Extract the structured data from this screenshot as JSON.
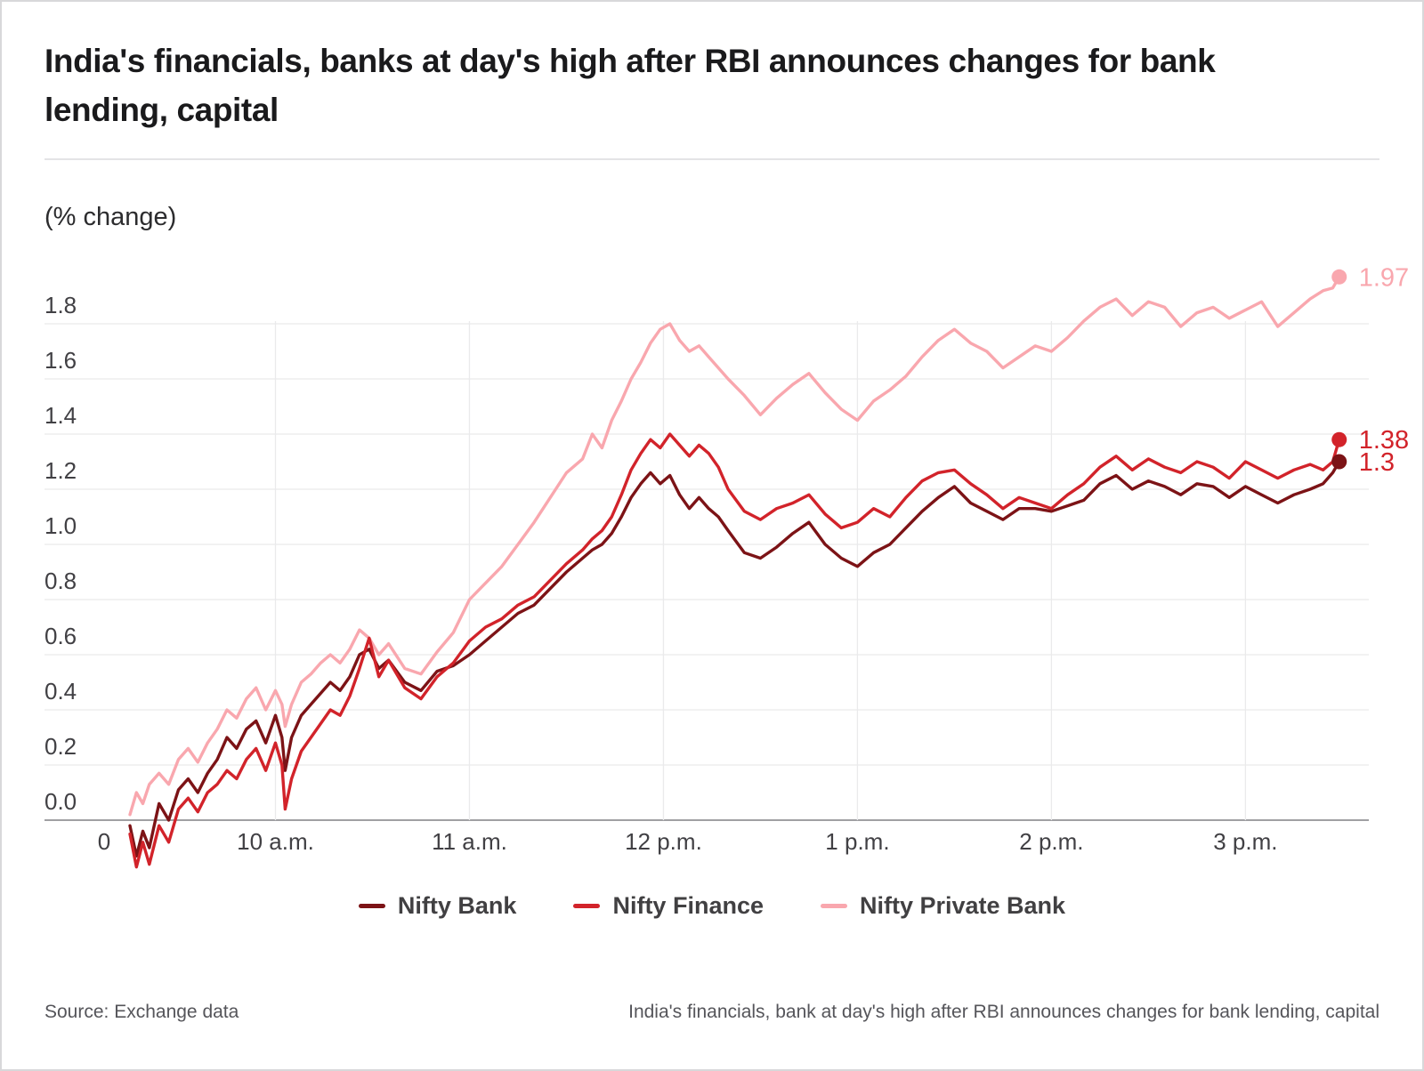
{
  "page": {
    "title": "India's financials, banks at day's high after RBI announces changes for bank lending, capital",
    "unit_label": "(% change)"
  },
  "legend": [
    {
      "label": "Nifty Bank",
      "color": "#7c1316"
    },
    {
      "label": "Nifty Finance",
      "color": "#d2232a"
    },
    {
      "label": "Nifty Private Bank",
      "color": "#f9a7ae"
    }
  ],
  "footer": {
    "source": "Source: Exchange data",
    "caption": "India's financials, bank at day's high after RBI announces changes for bank lending, capital"
  },
  "chart_data": {
    "type": "line",
    "title": "India's financials, banks at day's high after RBI announces changes for bank lending, capital",
    "ylabel": "(% change)",
    "x_unit": "minutes after 9:15 a.m. market open",
    "ylim": [
      -0.25,
      2.05
    ],
    "grid": true,
    "legend_position": "bottom",
    "x_ticks": [
      {
        "t": -8,
        "label": "0",
        "grid": false
      },
      {
        "t": 45,
        "label": "10 a.m.",
        "grid": true
      },
      {
        "t": 105,
        "label": "11 a.m.",
        "grid": true
      },
      {
        "t": 165,
        "label": "12 p.m.",
        "grid": true
      },
      {
        "t": 225,
        "label": "1 p.m.",
        "grid": true
      },
      {
        "t": 285,
        "label": "2 p.m.",
        "grid": true
      },
      {
        "t": 345,
        "label": "3 p.m.",
        "grid": true
      }
    ],
    "y_ticks": [
      0.0,
      0.2,
      0.4,
      0.6,
      0.8,
      1.0,
      1.2,
      1.4,
      1.6,
      1.8
    ],
    "x": [
      0,
      2,
      4,
      6,
      9,
      12,
      15,
      18,
      21,
      24,
      27,
      30,
      33,
      36,
      39,
      42,
      45,
      47,
      48,
      50,
      53,
      56,
      59,
      62,
      65,
      68,
      71,
      74,
      77,
      80,
      85,
      90,
      95,
      100,
      105,
      110,
      115,
      120,
      125,
      130,
      135,
      140,
      143,
      146,
      149,
      152,
      155,
      158,
      161,
      164,
      167,
      170,
      173,
      176,
      179,
      182,
      185,
      190,
      195,
      200,
      205,
      210,
      215,
      220,
      225,
      230,
      235,
      240,
      245,
      250,
      255,
      260,
      265,
      270,
      275,
      280,
      285,
      290,
      295,
      300,
      305,
      310,
      315,
      320,
      325,
      330,
      335,
      340,
      345,
      350,
      355,
      360,
      365,
      369,
      372,
      374
    ],
    "series": [
      {
        "name": "Nifty Private Bank",
        "color": "#f9a7ae",
        "label_color": "#f9a7ae",
        "end_label": "1.97",
        "values": [
          0.02,
          0.1,
          0.06,
          0.13,
          0.17,
          0.13,
          0.22,
          0.26,
          0.21,
          0.28,
          0.33,
          0.4,
          0.37,
          0.44,
          0.48,
          0.4,
          0.47,
          0.42,
          0.34,
          0.42,
          0.5,
          0.53,
          0.57,
          0.6,
          0.57,
          0.62,
          0.69,
          0.66,
          0.6,
          0.64,
          0.55,
          0.53,
          0.61,
          0.68,
          0.8,
          0.86,
          0.92,
          1.0,
          1.08,
          1.17,
          1.26,
          1.31,
          1.4,
          1.35,
          1.45,
          1.52,
          1.6,
          1.66,
          1.73,
          1.78,
          1.8,
          1.74,
          1.7,
          1.72,
          1.68,
          1.64,
          1.6,
          1.54,
          1.47,
          1.53,
          1.58,
          1.62,
          1.55,
          1.49,
          1.45,
          1.52,
          1.56,
          1.61,
          1.68,
          1.74,
          1.78,
          1.73,
          1.7,
          1.64,
          1.68,
          1.72,
          1.7,
          1.75,
          1.81,
          1.86,
          1.89,
          1.83,
          1.88,
          1.86,
          1.79,
          1.84,
          1.86,
          1.82,
          1.85,
          1.88,
          1.79,
          1.84,
          1.89,
          1.92,
          1.93,
          1.97
        ]
      },
      {
        "name": "Nifty Bank",
        "color": "#7c1316",
        "label_color": "#d2232a",
        "end_label": "1.3",
        "values": [
          -0.02,
          -0.13,
          -0.04,
          -0.1,
          0.06,
          0.0,
          0.11,
          0.15,
          0.1,
          0.17,
          0.22,
          0.3,
          0.26,
          0.33,
          0.36,
          0.28,
          0.38,
          0.3,
          0.18,
          0.3,
          0.38,
          0.42,
          0.46,
          0.5,
          0.47,
          0.52,
          0.6,
          0.62,
          0.55,
          0.58,
          0.5,
          0.47,
          0.54,
          0.56,
          0.6,
          0.65,
          0.7,
          0.75,
          0.78,
          0.84,
          0.9,
          0.95,
          0.98,
          1.0,
          1.04,
          1.1,
          1.17,
          1.22,
          1.26,
          1.22,
          1.25,
          1.18,
          1.13,
          1.17,
          1.13,
          1.1,
          1.05,
          0.97,
          0.95,
          0.99,
          1.04,
          1.08,
          1.0,
          0.95,
          0.92,
          0.97,
          1.0,
          1.06,
          1.12,
          1.17,
          1.21,
          1.15,
          1.12,
          1.09,
          1.13,
          1.13,
          1.12,
          1.14,
          1.16,
          1.22,
          1.25,
          1.2,
          1.23,
          1.21,
          1.18,
          1.22,
          1.21,
          1.17,
          1.21,
          1.18,
          1.15,
          1.18,
          1.2,
          1.22,
          1.26,
          1.3
        ]
      },
      {
        "name": "Nifty Finance",
        "color": "#d2232a",
        "label_color": "#d2232a",
        "end_label": "1.38",
        "values": [
          -0.05,
          -0.17,
          -0.08,
          -0.16,
          -0.02,
          -0.08,
          0.04,
          0.08,
          0.03,
          0.1,
          0.13,
          0.18,
          0.15,
          0.22,
          0.26,
          0.18,
          0.28,
          0.2,
          0.04,
          0.15,
          0.25,
          0.3,
          0.35,
          0.4,
          0.38,
          0.45,
          0.55,
          0.66,
          0.52,
          0.58,
          0.48,
          0.44,
          0.52,
          0.57,
          0.65,
          0.7,
          0.73,
          0.78,
          0.81,
          0.87,
          0.93,
          0.98,
          1.02,
          1.05,
          1.1,
          1.18,
          1.27,
          1.33,
          1.38,
          1.35,
          1.4,
          1.36,
          1.32,
          1.36,
          1.33,
          1.28,
          1.2,
          1.12,
          1.09,
          1.13,
          1.15,
          1.18,
          1.11,
          1.06,
          1.08,
          1.13,
          1.1,
          1.17,
          1.23,
          1.26,
          1.27,
          1.22,
          1.18,
          1.13,
          1.17,
          1.15,
          1.13,
          1.18,
          1.22,
          1.28,
          1.32,
          1.27,
          1.31,
          1.28,
          1.26,
          1.3,
          1.28,
          1.24,
          1.3,
          1.27,
          1.24,
          1.27,
          1.29,
          1.27,
          1.3,
          1.38
        ]
      }
    ],
    "styles": {
      "grid_color": "#eaeaeb",
      "axis_color": "#a0a0a3",
      "tick_color": "#414044"
    }
  }
}
